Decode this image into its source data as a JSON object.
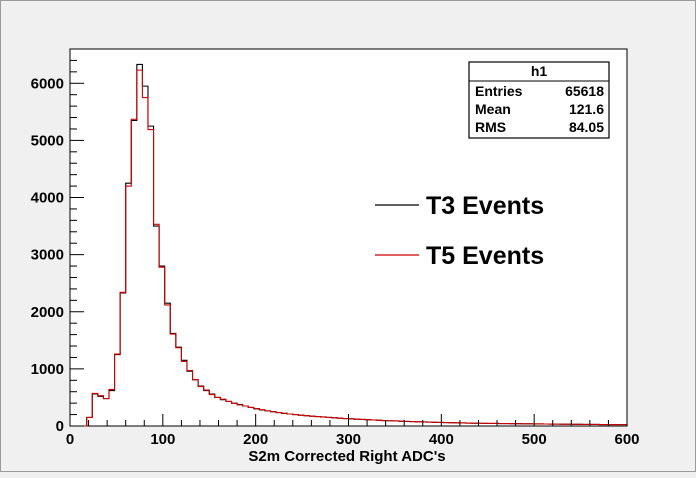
{
  "chart_data": {
    "type": "histogram",
    "xlabel": "S2m Corrected Right ADC's",
    "ylabel": "",
    "xlim": [
      0,
      600
    ],
    "ylim": [
      0,
      6600
    ],
    "x_ticks": [
      0,
      100,
      200,
      300,
      400,
      500,
      600
    ],
    "y_ticks": [
      0,
      1000,
      2000,
      3000,
      4000,
      5000,
      6000
    ],
    "bin_width": 6,
    "bin_start": 0,
    "grid": false,
    "legend_position": "right",
    "stats_box": {
      "title": "h1",
      "rows": [
        {
          "label": "Entries",
          "value": "65618"
        },
        {
          "label": "Mean",
          "value": "121.6"
        },
        {
          "label": "RMS",
          "value": "84.05"
        }
      ]
    },
    "series": [
      {
        "name": "T3 Events",
        "color": "#000000",
        "values": [
          0,
          0,
          0,
          150,
          560,
          520,
          480,
          620,
          1250,
          2330,
          4250,
          5350,
          6330,
          5950,
          5250,
          3500,
          2800,
          2150,
          1620,
          1380,
          1150,
          960,
          810,
          700,
          620,
          560,
          500,
          460,
          430,
          400,
          375,
          350,
          325,
          300,
          280,
          265,
          250,
          235,
          220,
          210,
          200,
          190,
          180,
          172,
          165,
          158,
          150,
          143,
          137,
          131,
          125,
          120,
          115,
          110,
          105,
          100,
          96,
          92,
          88,
          84,
          80,
          77,
          74,
          71,
          68,
          65,
          62,
          60,
          58,
          56,
          54,
          52,
          50,
          48,
          46,
          45,
          44,
          43,
          42,
          41,
          40,
          39,
          38,
          37,
          36,
          35,
          34,
          33,
          32,
          31,
          30,
          29,
          28,
          27,
          27,
          26,
          25,
          25,
          24,
          24
        ]
      },
      {
        "name": "T5 Events",
        "color": "#cc0000",
        "values": [
          0,
          0,
          0,
          150,
          570,
          530,
          480,
          640,
          1260,
          2340,
          4200,
          5370,
          6230,
          5750,
          5190,
          3530,
          2780,
          2120,
          1610,
          1370,
          1130,
          970,
          810,
          690,
          630,
          550,
          500,
          470,
          430,
          400,
          370,
          350,
          325,
          305,
          285,
          265,
          250,
          235,
          222,
          210,
          200,
          190,
          181,
          172,
          165,
          157,
          150,
          143,
          137,
          131,
          125,
          120,
          115,
          110,
          106,
          101,
          96,
          92,
          88,
          84,
          81,
          77,
          74,
          71,
          68,
          65,
          63,
          60,
          58,
          56,
          54,
          52,
          50,
          48,
          47,
          45,
          44,
          43,
          42,
          41,
          40,
          39,
          38,
          37,
          36,
          35,
          34,
          33,
          32,
          31,
          30,
          29,
          28,
          28,
          27,
          26,
          25,
          25,
          24,
          24
        ]
      }
    ]
  }
}
